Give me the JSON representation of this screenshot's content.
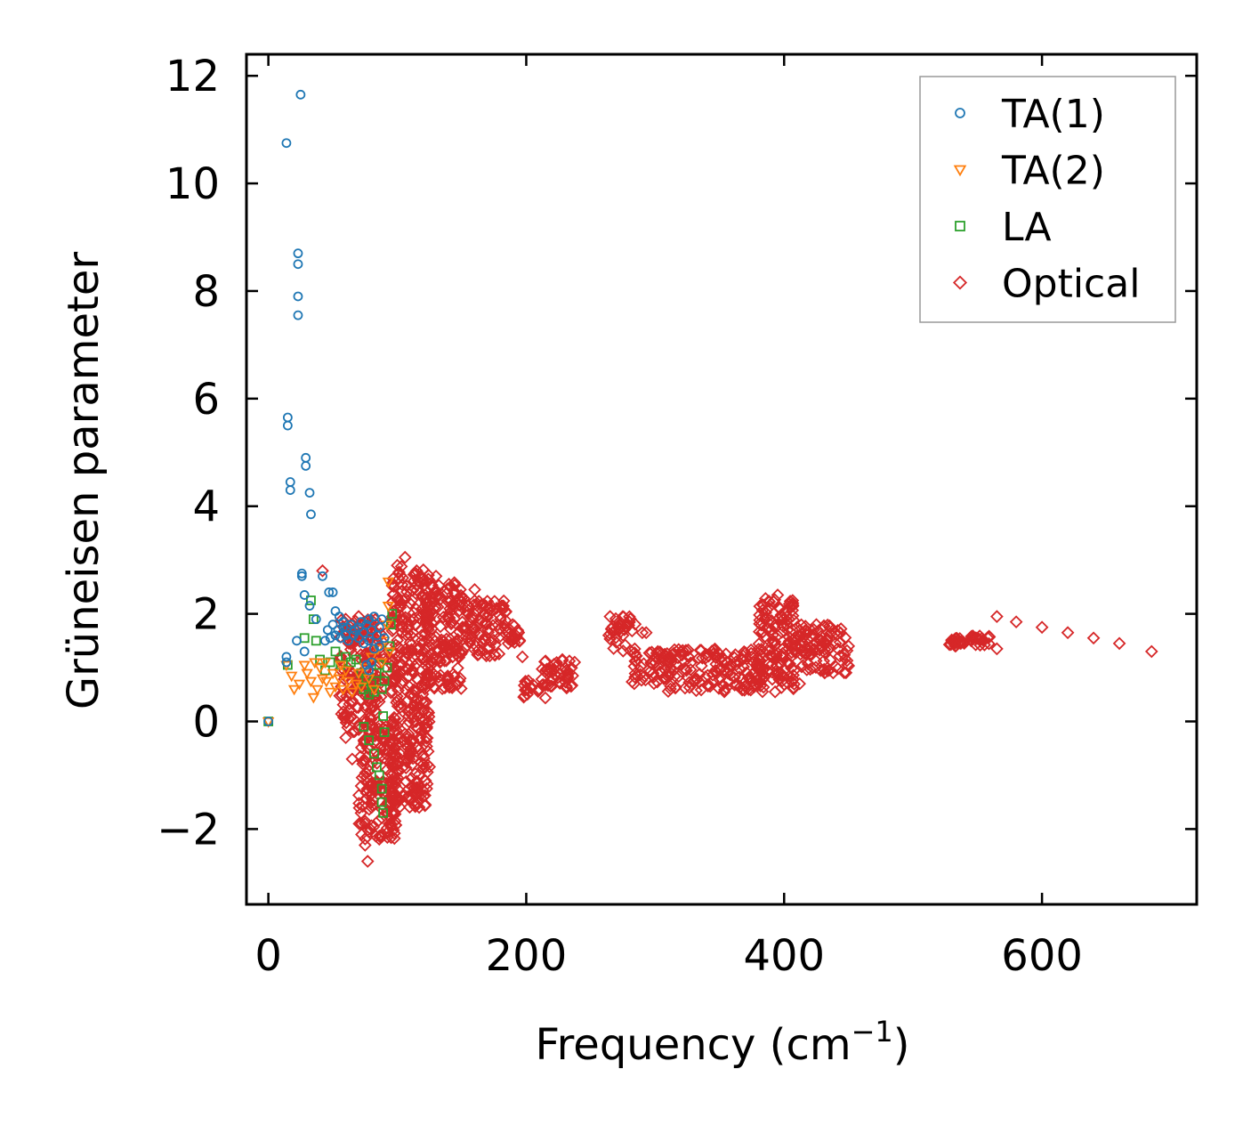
{
  "chart_data": {
    "type": "scatter",
    "title": "",
    "xlabel": "Frequency (cm",
    "xlabel_sup": "−1",
    "xlabel_close": ")",
    "ylabel": "Grüneisen parameter",
    "xlim": [
      -17,
      720
    ],
    "ylim": [
      -3.4,
      12.4
    ],
    "xticks": [
      0,
      200,
      400,
      600
    ],
    "xtick_labels": [
      "0",
      "200",
      "400",
      "600"
    ],
    "yticks": [
      -2,
      0,
      2,
      4,
      6,
      8,
      10,
      12
    ],
    "ytick_labels": [
      "−2",
      "0",
      "2",
      "4",
      "6",
      "8",
      "10",
      "12"
    ],
    "grid": false,
    "legend_position": "top-right",
    "series": [
      {
        "name": "TA(1)",
        "marker": "circle",
        "color": "#1f77b4",
        "points": [
          [
            0,
            0
          ],
          [
            14,
            10.75
          ],
          [
            25,
            11.65
          ],
          [
            23,
            8.7
          ],
          [
            23,
            8.5
          ],
          [
            23,
            7.9
          ],
          [
            23,
            7.55
          ],
          [
            15,
            5.65
          ],
          [
            15,
            5.5
          ],
          [
            17,
            4.45
          ],
          [
            17,
            4.3
          ],
          [
            29,
            4.9
          ],
          [
            29,
            4.75
          ],
          [
            32,
            4.25
          ],
          [
            33,
            3.85
          ],
          [
            26,
            2.75
          ],
          [
            26,
            2.7
          ],
          [
            28,
            2.35
          ],
          [
            32,
            2.15
          ],
          [
            37,
            1.9
          ],
          [
            42,
            2.7
          ],
          [
            47,
            2.4
          ],
          [
            50,
            2.4
          ],
          [
            52,
            2.05
          ],
          [
            55,
            1.95
          ],
          [
            58,
            1.85
          ],
          [
            61,
            1.75
          ],
          [
            64,
            1.8
          ],
          [
            67,
            1.7
          ],
          [
            70,
            1.75
          ],
          [
            72,
            1.85
          ],
          [
            74,
            1.65
          ],
          [
            76,
            1.8
          ],
          [
            78,
            1.9
          ],
          [
            80,
            1.7
          ],
          [
            82,
            1.95
          ],
          [
            84,
            1.6
          ],
          [
            86,
            1.75
          ],
          [
            88,
            1.9
          ],
          [
            90,
            1.55
          ],
          [
            44,
            1.5
          ],
          [
            46,
            1.7
          ],
          [
            48,
            1.55
          ],
          [
            50,
            1.8
          ],
          [
            52,
            1.6
          ],
          [
            54,
            1.7
          ],
          [
            56,
            1.55
          ],
          [
            58,
            1.75
          ],
          [
            60,
            1.6
          ],
          [
            62,
            1.5
          ],
          [
            66,
            1.6
          ],
          [
            70,
            1.55
          ],
          [
            74,
            1.45
          ],
          [
            78,
            1.5
          ],
          [
            82,
            1.35
          ],
          [
            86,
            1.4
          ],
          [
            76,
            1.05
          ],
          [
            78,
            0.95
          ],
          [
            80,
            1.1
          ],
          [
            22,
            1.5
          ],
          [
            28,
            1.3
          ],
          [
            14,
            1.2
          ],
          [
            14,
            1.1
          ]
        ]
      },
      {
        "name": "TA(2)",
        "marker": "triangle-down",
        "color": "#ff7f0e",
        "points": [
          [
            0,
            0
          ],
          [
            14,
            1.05
          ],
          [
            18,
            0.85
          ],
          [
            20,
            0.6
          ],
          [
            24,
            0.7
          ],
          [
            28,
            1.05
          ],
          [
            30,
            0.9
          ],
          [
            33,
            0.75
          ],
          [
            35,
            0.45
          ],
          [
            38,
            0.6
          ],
          [
            40,
            1.0
          ],
          [
            42,
            0.8
          ],
          [
            45,
            0.75
          ],
          [
            48,
            0.55
          ],
          [
            50,
            0.9
          ],
          [
            52,
            0.65
          ],
          [
            55,
            0.8
          ],
          [
            58,
            0.6
          ],
          [
            60,
            0.95
          ],
          [
            62,
            0.75
          ],
          [
            65,
            0.55
          ],
          [
            68,
            0.7
          ],
          [
            70,
            0.9
          ],
          [
            72,
            0.65
          ],
          [
            75,
            1.0
          ],
          [
            78,
            0.8
          ],
          [
            80,
            1.2
          ],
          [
            82,
            0.6
          ],
          [
            85,
            1.35
          ],
          [
            88,
            1.1
          ],
          [
            90,
            1.5
          ],
          [
            92,
            1.8
          ],
          [
            93,
            2.15
          ],
          [
            93,
            2.6
          ],
          [
            94,
            1.3
          ],
          [
            36,
            1.1
          ],
          [
            44,
            1.1
          ],
          [
            56,
            1.05
          ]
        ]
      },
      {
        "name": "LA",
        "marker": "square",
        "color": "#2ca02c",
        "points": [
          [
            0,
            0
          ],
          [
            15,
            1.05
          ],
          [
            28,
            1.55
          ],
          [
            33,
            2.25
          ],
          [
            35,
            1.9
          ],
          [
            37,
            1.5
          ],
          [
            40,
            1.15
          ],
          [
            44,
            0.95
          ],
          [
            48,
            1.1
          ],
          [
            52,
            1.3
          ],
          [
            56,
            1.05
          ],
          [
            60,
            1.2
          ],
          [
            64,
            1.1
          ],
          [
            68,
            1.15
          ],
          [
            72,
            0.9
          ],
          [
            74,
            0.6
          ],
          [
            76,
            0.8
          ],
          [
            78,
            0.5
          ],
          [
            80,
            0.7
          ],
          [
            82,
            0.55
          ],
          [
            84,
            0.9
          ],
          [
            86,
            1.05
          ],
          [
            88,
            0.6
          ],
          [
            90,
            0.75
          ],
          [
            92,
            1.0
          ],
          [
            94,
            1.4
          ],
          [
            95,
            1.8
          ],
          [
            96,
            2.0
          ],
          [
            74,
            -0.1
          ],
          [
            78,
            -0.35
          ],
          [
            82,
            -0.6
          ],
          [
            84,
            -0.85
          ],
          [
            86,
            -1.0
          ],
          [
            88,
            -1.25
          ],
          [
            88,
            -1.5
          ],
          [
            89,
            -1.7
          ],
          [
            90,
            -0.2
          ],
          [
            89,
            0.1
          ]
        ]
      },
      {
        "name": "Optical",
        "marker": "diamond",
        "color": "#d62728",
        "points": [
          [
            42,
            2.8
          ],
          [
            60,
            1.9
          ],
          [
            70,
            1.95
          ],
          [
            80,
            1.7
          ],
          [
            100,
            2.9
          ],
          [
            106,
            3.05
          ],
          [
            115,
            2.8
          ],
          [
            120,
            2.6
          ],
          [
            130,
            2.7
          ],
          [
            140,
            2.55
          ],
          [
            150,
            2.3
          ],
          [
            160,
            2.45
          ],
          [
            170,
            2.1
          ],
          [
            180,
            1.9
          ],
          [
            192,
            1.55
          ],
          [
            197,
            1.2
          ],
          [
            200,
            0.6
          ],
          [
            210,
            0.6
          ],
          [
            220,
            0.95
          ],
          [
            228,
            1.15
          ],
          [
            236,
            0.85
          ],
          [
            265,
            1.95
          ],
          [
            275,
            1.6
          ],
          [
            290,
            1.65
          ],
          [
            300,
            1.1
          ],
          [
            320,
            1.3
          ],
          [
            345,
            1.25
          ],
          [
            365,
            1.1
          ],
          [
            380,
            1.15
          ],
          [
            395,
            2.35
          ],
          [
            410,
            1.75
          ],
          [
            425,
            1.8
          ],
          [
            440,
            1.65
          ],
          [
            450,
            1.4
          ],
          [
            530,
            1.5
          ],
          [
            545,
            1.5
          ],
          [
            565,
            1.95
          ],
          [
            580,
            1.85
          ],
          [
            600,
            1.75
          ],
          [
            620,
            1.65
          ],
          [
            640,
            1.55
          ],
          [
            660,
            1.45
          ],
          [
            685,
            1.3
          ],
          [
            60,
            -0.3
          ],
          [
            65,
            -0.7
          ],
          [
            72,
            -1.2
          ],
          [
            75,
            -1.9
          ],
          [
            75,
            -2.3
          ],
          [
            77,
            -2.6
          ],
          [
            80,
            -1.6
          ],
          [
            95,
            -1.9
          ],
          [
            108,
            -1.4
          ],
          [
            412,
            0.7
          ],
          [
            393,
            0.55
          ],
          [
            293,
            1.65
          ],
          [
            565,
            1.35
          ]
        ]
      }
    ],
    "optical_bands": [
      {
        "xmin": 55,
        "xmax": 90,
        "ylo": -0.2,
        "yhi": 1.9
      },
      {
        "xmin": 70,
        "xmax": 100,
        "ylo": -2.2,
        "yhi": 0.0
      },
      {
        "xmin": 95,
        "xmax": 125,
        "ylo": -1.6,
        "yhi": 2.9
      },
      {
        "xmin": 118,
        "xmax": 150,
        "ylo": 0.6,
        "yhi": 2.6
      },
      {
        "xmin": 150,
        "xmax": 185,
        "ylo": 1.2,
        "yhi": 2.3
      },
      {
        "xmin": 185,
        "xmax": 195,
        "ylo": 1.4,
        "yhi": 1.8
      },
      {
        "xmin": 198,
        "xmax": 215,
        "ylo": 0.4,
        "yhi": 0.8
      },
      {
        "xmin": 212,
        "xmax": 238,
        "ylo": 0.6,
        "yhi": 1.2
      },
      {
        "xmin": 264,
        "xmax": 285,
        "ylo": 1.3,
        "yhi": 1.95
      },
      {
        "xmin": 282,
        "xmax": 312,
        "ylo": 0.7,
        "yhi": 1.3
      },
      {
        "xmin": 305,
        "xmax": 385,
        "ylo": 0.55,
        "yhi": 1.35
      },
      {
        "xmin": 380,
        "xmax": 408,
        "ylo": 0.6,
        "yhi": 2.3
      },
      {
        "xmin": 405,
        "xmax": 450,
        "ylo": 0.9,
        "yhi": 1.8
      },
      {
        "xmin": 525,
        "xmax": 540,
        "ylo": 1.4,
        "yhi": 1.55
      },
      {
        "xmin": 545,
        "xmax": 560,
        "ylo": 1.4,
        "yhi": 1.6
      }
    ]
  }
}
